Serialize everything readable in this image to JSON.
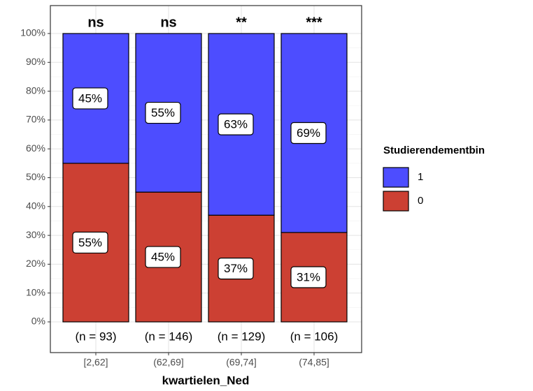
{
  "chart_data": {
    "type": "stacked_bar",
    "categories": [
      "[2,62]",
      "(62,69]",
      "(69,74]",
      "(74,85]"
    ],
    "series": [
      {
        "name": "1",
        "color": "#4d4dff",
        "values": [
          45,
          55,
          63,
          69
        ],
        "value_labels": [
          "45%",
          "55%",
          "63%",
          "69%"
        ]
      },
      {
        "name": "0",
        "color": "#cc4033",
        "values": [
          55,
          45,
          37,
          31
        ],
        "value_labels": [
          "55%",
          "45%",
          "37%",
          "31%"
        ]
      }
    ],
    "significance_labels": [
      "ns",
      "ns",
      "**",
      "***"
    ],
    "count_labels": [
      "(n = 93)",
      "(n = 146)",
      "(n = 129)",
      "(n = 106)"
    ],
    "xlabel": "kwartielen_Ned",
    "legend_title": "Studierendementbin",
    "legend": "right",
    "ylim": [
      0,
      100
    ],
    "yticks": [
      {
        "value": 0,
        "label": "0%"
      },
      {
        "value": 10,
        "label": "10%"
      },
      {
        "value": 20,
        "label": "20%"
      },
      {
        "value": 30,
        "label": "30%"
      },
      {
        "value": 40,
        "label": "40%"
      },
      {
        "value": 50,
        "label": "50%"
      },
      {
        "value": 60,
        "label": "60%"
      },
      {
        "value": 70,
        "label": "70%"
      },
      {
        "value": 80,
        "label": "80%"
      },
      {
        "value": 90,
        "label": "90%"
      },
      {
        "value": 100,
        "label": "100%"
      }
    ],
    "grid": true
  }
}
